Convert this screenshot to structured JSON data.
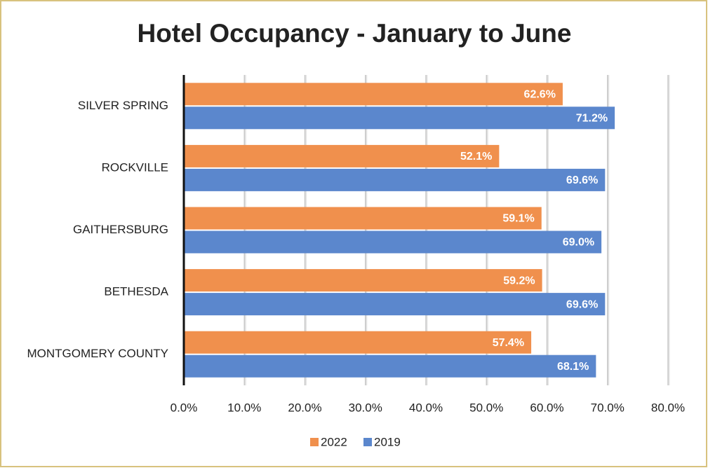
{
  "chart_data": {
    "type": "bar",
    "orientation": "horizontal",
    "title": "Hotel Occupancy - January to June",
    "categories": [
      "SILVER SPRING",
      "ROCKVILLE",
      "GAITHERSBURG",
      "BETHESDA",
      "MONTGOMERY COUNTY"
    ],
    "series": [
      {
        "name": "2022",
        "color": "#f0904d",
        "values": [
          62.6,
          52.1,
          59.1,
          59.2,
          57.4
        ],
        "value_labels": [
          "62.6%",
          "52.1%",
          "59.1%",
          "59.2%",
          "57.4%"
        ]
      },
      {
        "name": "2019",
        "color": "#5b87cd",
        "values": [
          71.2,
          69.6,
          69.0,
          69.6,
          68.1
        ],
        "value_labels": [
          "71.2%",
          "69.6%",
          "69.0%",
          "69.6%",
          "68.1%"
        ]
      }
    ],
    "xlim": [
      0,
      80
    ],
    "xticks": [
      {
        "value": 0,
        "label": "0.0%"
      },
      {
        "value": 10,
        "label": "10.0%"
      },
      {
        "value": 20,
        "label": "20.0%"
      },
      {
        "value": 30,
        "label": "30.0%"
      },
      {
        "value": 40,
        "label": "40.0%"
      },
      {
        "value": 50,
        "label": "50.0%"
      },
      {
        "value": 60,
        "label": "60.0%"
      },
      {
        "value": 70,
        "label": "70.0%"
      },
      {
        "value": 80,
        "label": "80.0%"
      }
    ],
    "grid": true,
    "legend": "bottom"
  }
}
